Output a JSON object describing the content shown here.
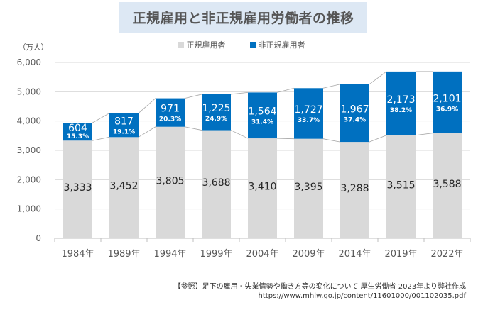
{
  "title": "正規雇用と非正規雇用労働者の推移",
  "unit_label": "（万人）",
  "legend": [
    {
      "label": "正規雇用者",
      "color": "#d9d9d9"
    },
    {
      "label": "非正規雇用者",
      "color": "#0070c0"
    }
  ],
  "source": {
    "line1": "【参照】足下の雇用・失業情勢や働き方等の変化について 厚生労働省 2023年より弊社作成",
    "line2": "https://www.mhlw.go.jp/content/11601000/001102035.pdf"
  },
  "chart_data": {
    "type": "bar",
    "stacked": true,
    "title": "正規雇用と非正規雇用労働者の推移",
    "xlabel": "",
    "ylabel": "（万人）",
    "ylim": [
      0,
      6000
    ],
    "yticks": [
      0,
      1000,
      2000,
      3000,
      4000,
      5000,
      6000
    ],
    "ytick_labels": [
      "0",
      "1,000",
      "2,000",
      "3,000",
      "4,000",
      "5,000",
      "6,000"
    ],
    "grid": true,
    "legend_position": "top-center",
    "categories": [
      "1984年",
      "1989年",
      "1994年",
      "1999年",
      "2004年",
      "2009年",
      "2014年",
      "2019年",
      "2022年"
    ],
    "series": [
      {
        "name": "正規雇用者",
        "color": "#d9d9d9",
        "values": [
          3333,
          3452,
          3805,
          3688,
          3410,
          3395,
          3288,
          3515,
          3588
        ],
        "labels": [
          "3,333",
          "3,452",
          "3,805",
          "3,688",
          "3,410",
          "3,395",
          "3,288",
          "3,515",
          "3,588"
        ]
      },
      {
        "name": "非正規雇用者",
        "color": "#0070c0",
        "values": [
          604,
          817,
          971,
          1225,
          1564,
          1727,
          1967,
          2173,
          2101
        ],
        "labels": [
          "604",
          "817",
          "971",
          "1,225",
          "1,564",
          "1,727",
          "1,967",
          "2,173",
          "2,101"
        ],
        "ratio_labels": [
          "15.3%",
          "19.1%",
          "20.3%",
          "24.9%",
          "31.4%",
          "33.7%",
          "37.4%",
          "38.2%",
          "36.9%"
        ]
      }
    ],
    "series_lines": true
  }
}
